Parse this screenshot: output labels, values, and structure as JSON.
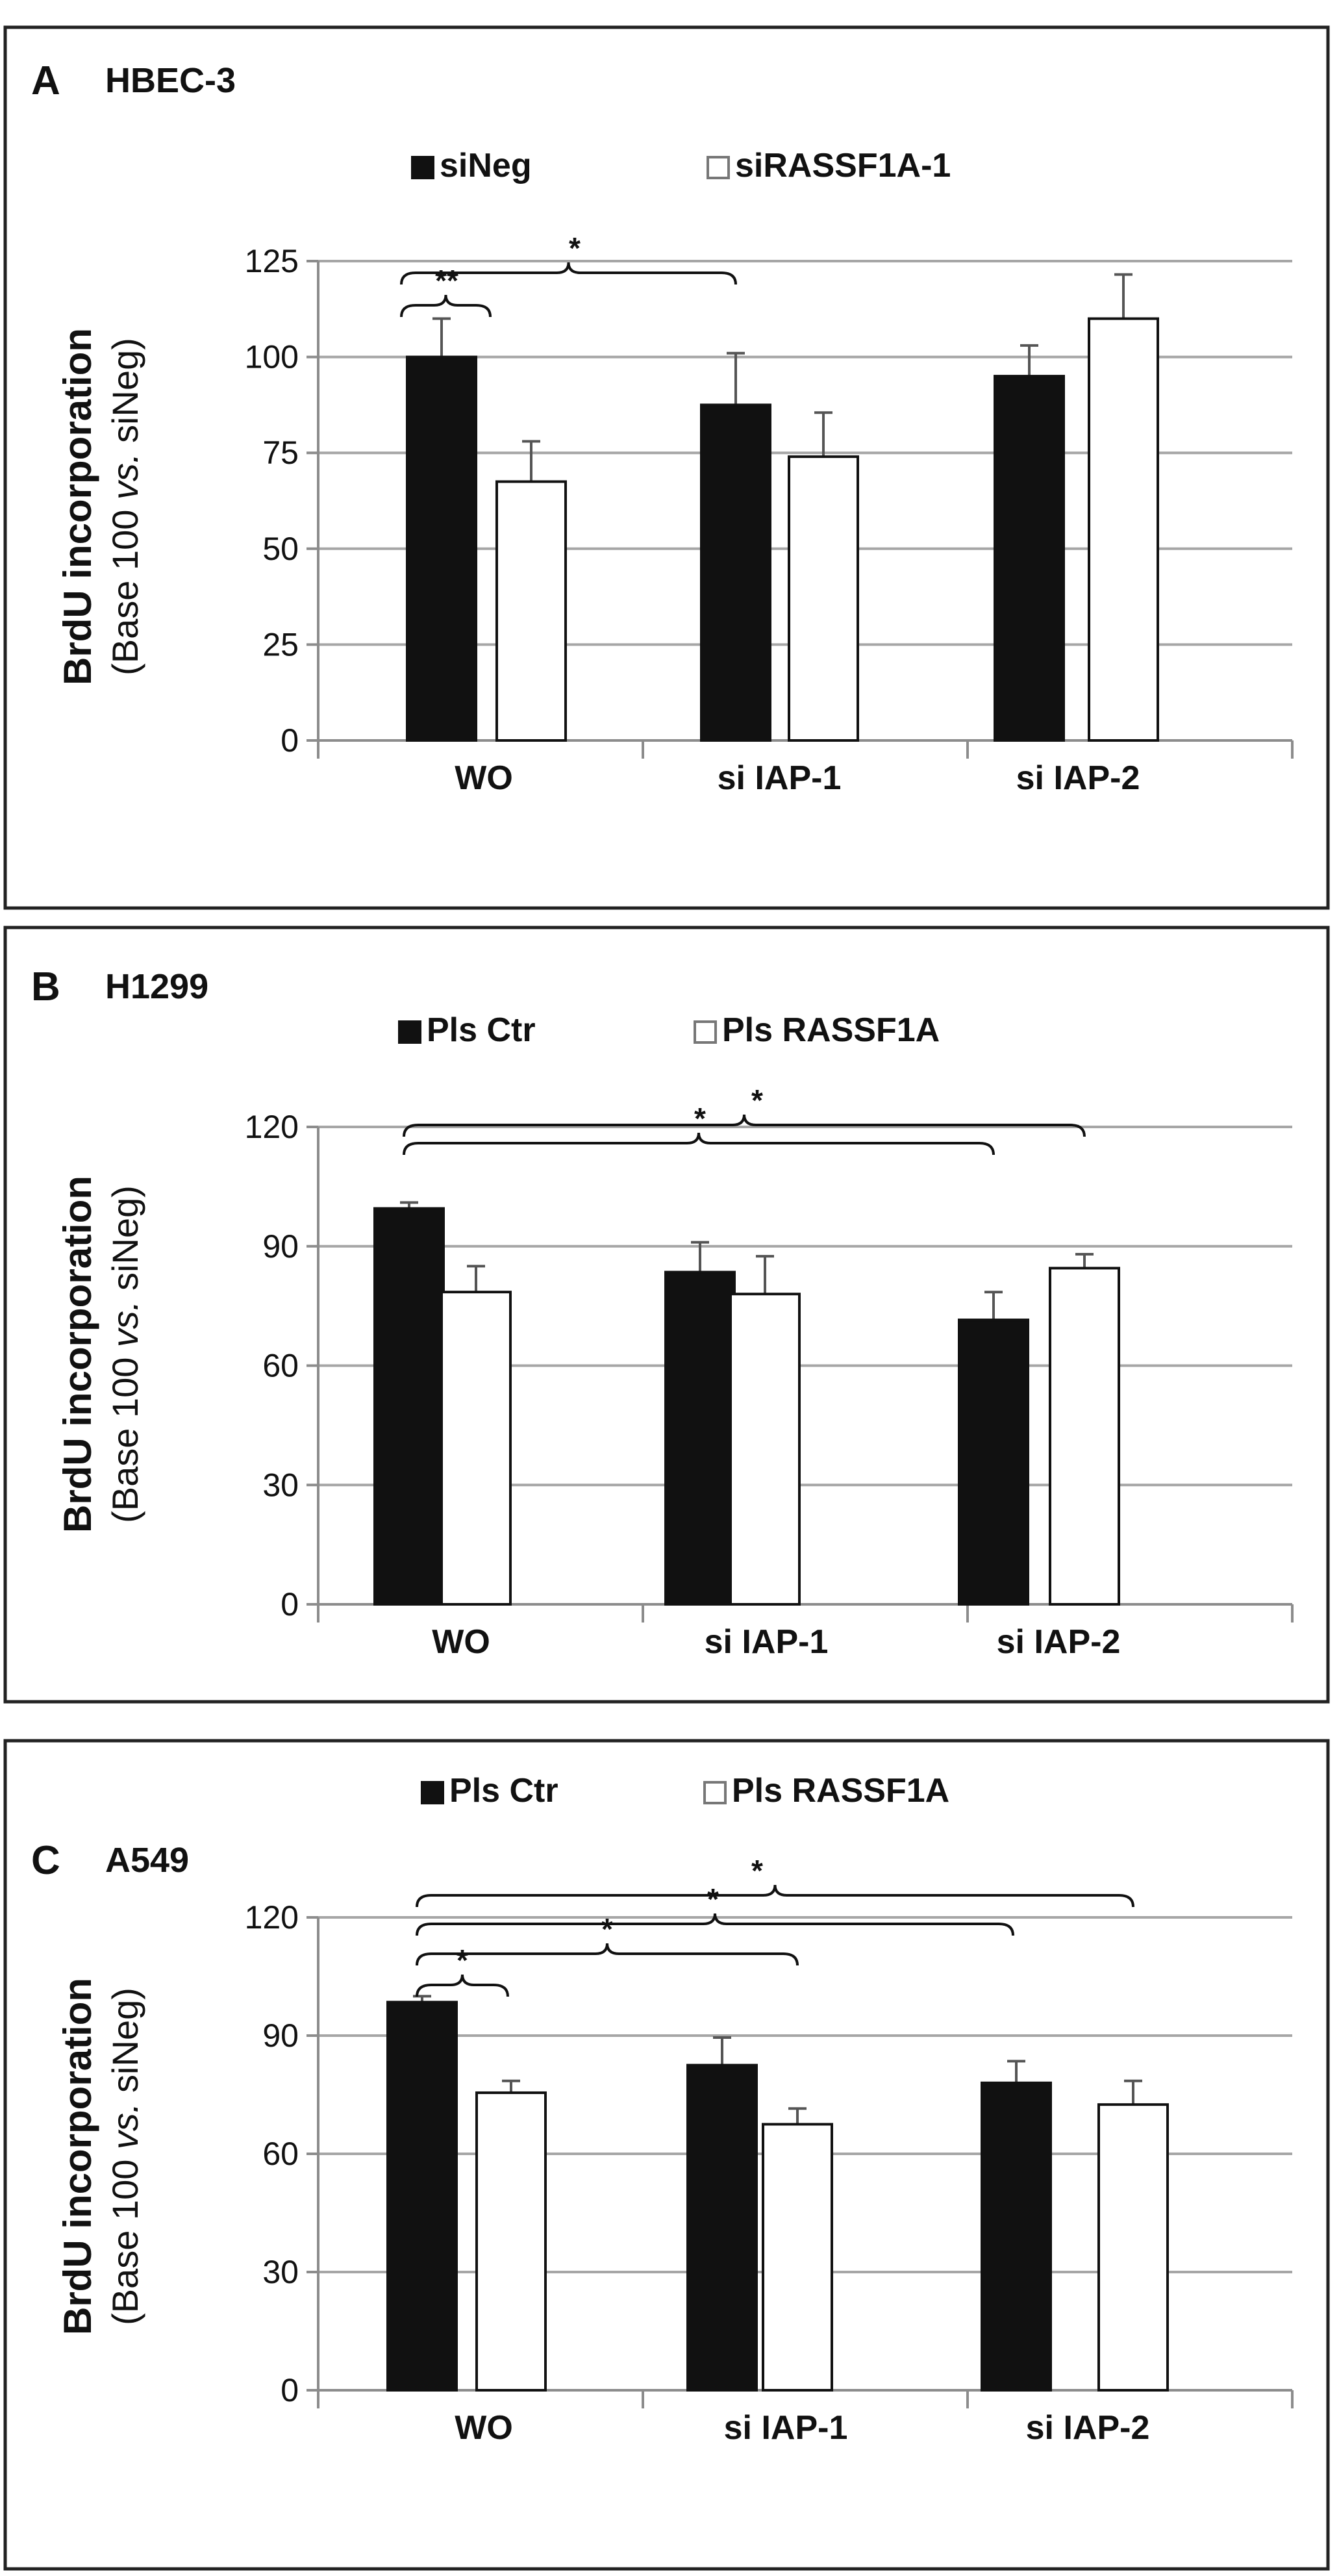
{
  "colors": {
    "bar_series_1": "#111111",
    "bar_series_2": "#ffffff",
    "grid": "#a6a6a6",
    "axis": "#8c8c8c",
    "frame": "#222222"
  },
  "y_axis_label_line1": "BrdU incorporation",
  "y_axis_label_line2_prefix": "(Base 100 ",
  "y_axis_label_line2_italic": "vs.",
  "y_axis_label_line2_suffix": " siNeg)",
  "chart_data": [
    {
      "type": "bar",
      "panel": "A",
      "title": "HBEC-3",
      "categories": [
        "WO",
        "si IAP-1",
        "si IAP-2"
      ],
      "series": [
        {
          "name": "siNeg",
          "values": [
            100,
            87.5,
            95
          ],
          "errors": [
            10,
            13.5,
            8
          ]
        },
        {
          "name": "siRASSF1A-1",
          "values": [
            67.5,
            74,
            110
          ],
          "errors": [
            10.5,
            11.5,
            11.5
          ]
        }
      ],
      "ylim": [
        0,
        125
      ],
      "yticks": [
        0,
        25,
        50,
        75,
        100,
        125
      ],
      "ylabel": "BrdU incorporation (Base 100 vs. siNeg)",
      "legend": "top",
      "significance": [
        {
          "label": "**",
          "from": "WO · siNeg",
          "to": "WO · siRASSF1A-1"
        },
        {
          "label": "*",
          "from": "WO · siNeg",
          "to": "si IAP-1 · siNeg"
        }
      ]
    },
    {
      "type": "bar",
      "panel": "B",
      "title": "H1299",
      "categories": [
        "WO",
        "si IAP-1",
        "si IAP-2"
      ],
      "series": [
        {
          "name": "Pls Ctr",
          "values": [
            99.5,
            83.5,
            71.5
          ],
          "errors": [
            1.5,
            7.5,
            7
          ]
        },
        {
          "name": "Pls RASSF1A",
          "values": [
            78.5,
            78,
            84.5
          ],
          "errors": [
            6.5,
            9.5,
            3.5
          ]
        }
      ],
      "ylim": [
        0,
        120
      ],
      "yticks": [
        0,
        30,
        60,
        90,
        120
      ],
      "ylabel": "BrdU incorporation (Base 100 vs. siNeg)",
      "legend": "top",
      "significance": [
        {
          "label": "*",
          "from": "WO · Pls Ctr",
          "to": "si IAP-2 · Pls Ctr"
        },
        {
          "label": "*",
          "from": "WO · Pls Ctr",
          "to": "si IAP-2 · Pls RASSF1A"
        }
      ]
    },
    {
      "type": "bar",
      "panel": "C",
      "title": "A549",
      "categories": [
        "WO",
        "si IAP-1",
        "si IAP-2"
      ],
      "series": [
        {
          "name": "Pls Ctr",
          "values": [
            98.5,
            82.5,
            78
          ],
          "errors": [
            1.5,
            7,
            5.5
          ]
        },
        {
          "name": "Pls RASSF1A",
          "values": [
            75.5,
            67.5,
            72.5
          ],
          "errors": [
            3,
            4,
            6
          ]
        }
      ],
      "ylim": [
        0,
        120
      ],
      "yticks": [
        0,
        30,
        60,
        90,
        120
      ],
      "ylabel": "BrdU incorporation (Base 100 vs. siNeg)",
      "legend": "top",
      "significance": [
        {
          "label": "*",
          "from": "WO · Pls Ctr",
          "to": "WO · Pls RASSF1A"
        },
        {
          "label": "*",
          "from": "WO · Pls Ctr",
          "to": "si IAP-1 · Pls RASSF1A"
        },
        {
          "label": "*",
          "from": "WO · Pls Ctr",
          "to": "si IAP-2 · Pls Ctr"
        },
        {
          "label": "*",
          "from": "WO · Pls Ctr",
          "to": "si IAP-2 · Pls RASSF1A"
        }
      ]
    }
  ]
}
